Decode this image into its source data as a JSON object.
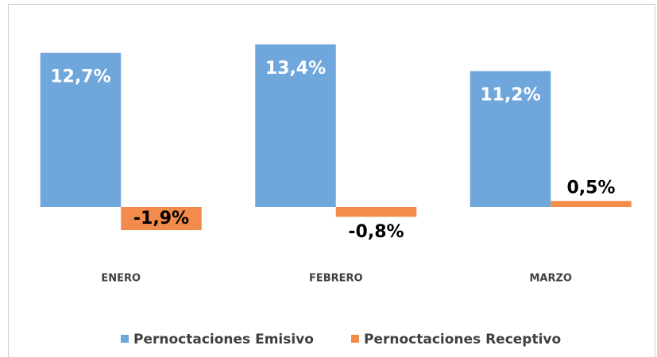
{
  "chart_data": {
    "type": "bar",
    "categories": [
      "ENERO",
      "FEBRERO",
      "MARZO"
    ],
    "series": [
      {
        "name": "Pernoctaciones Emisivo",
        "color": "#6fa6dc",
        "values": [
          12.7,
          13.4,
          11.2
        ],
        "value_labels": [
          "12,7%",
          "13,4%",
          "11,2%"
        ]
      },
      {
        "name": "Pernoctaciones Receptivo",
        "color": "#f38b4a",
        "values": [
          -1.9,
          -0.8,
          0.5
        ],
        "value_labels": [
          "-1,9%",
          "-0,8%",
          "0,5%"
        ]
      }
    ]
  }
}
